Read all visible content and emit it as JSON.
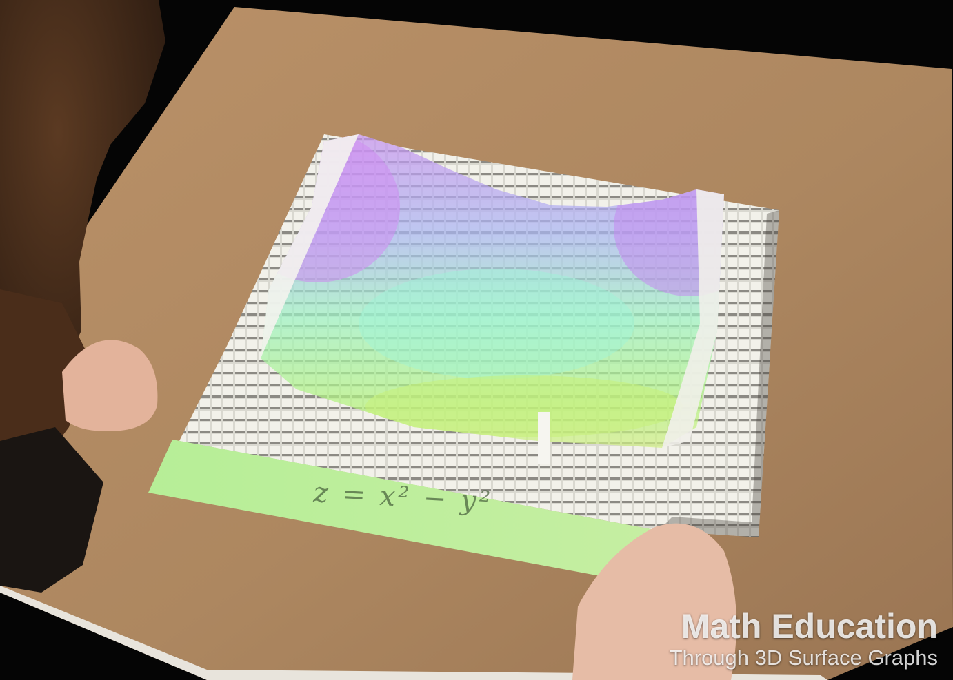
{
  "display": {
    "equation": "z = x² − y²",
    "surface": "saddle"
  },
  "caption": {
    "title": "Math Education",
    "subtitle": "Through 3D Surface Graphs"
  },
  "colors": {
    "table": "#b38b63",
    "pins": "#efefe8",
    "projection_green": "#a8f28e",
    "projection_violet": "#b78af0",
    "background": "#050505"
  }
}
